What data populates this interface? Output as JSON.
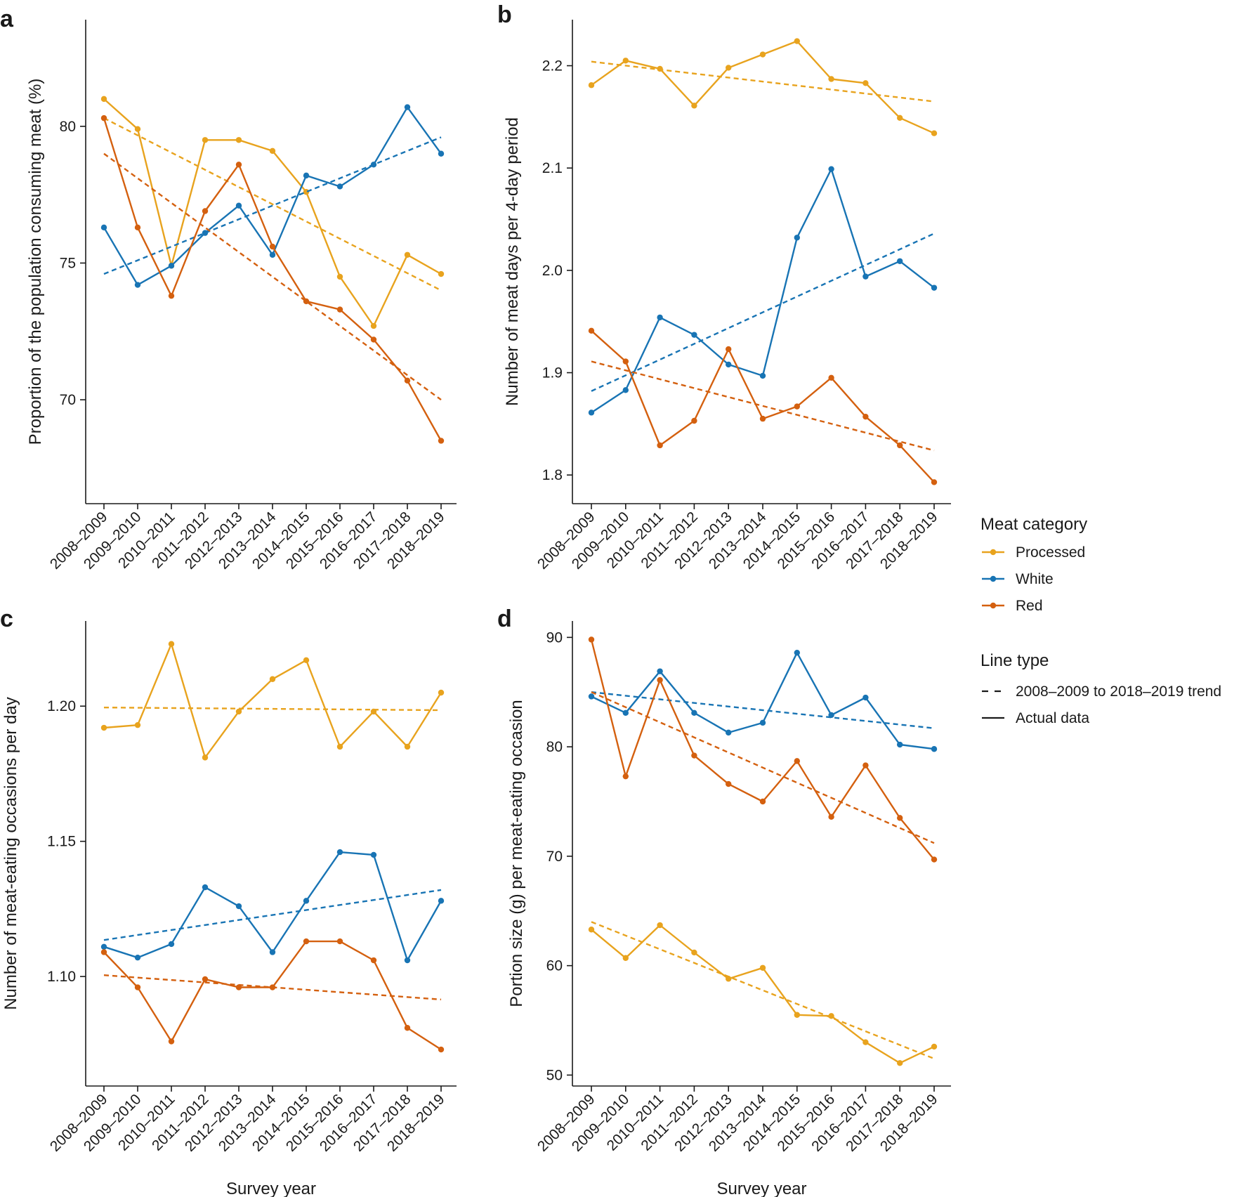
{
  "colors": {
    "Processed": "#e8a31e",
    "White": "#1874b4",
    "Red": "#d4600f",
    "axis": "#1a1a1a"
  },
  "chart_data": [
    {
      "type": "line",
      "panel": "a",
      "categories": [
        "2008–2009",
        "2009–2010",
        "2010–2011",
        "2011–2012",
        "2012–2013",
        "2013–2014",
        "2014–2015",
        "2015–2016",
        "2016–2017",
        "2017–2018",
        "2018–2019"
      ],
      "xlabel": "",
      "ylabel": "Proportion of the population consuming meat (%)",
      "ylim": [
        66.2,
        83.9
      ],
      "yticks": [
        70,
        75,
        80
      ],
      "series": [
        {
          "name": "Processed",
          "values": [
            81.0,
            79.9,
            74.9,
            79.5,
            79.5,
            79.1,
            77.6,
            74.5,
            72.7,
            75.3,
            74.6
          ],
          "trend": [
            80.3,
            74.0
          ]
        },
        {
          "name": "White",
          "values": [
            76.3,
            74.2,
            74.9,
            76.1,
            77.1,
            75.3,
            78.2,
            77.8,
            78.6,
            80.7,
            79.0
          ],
          "trend": [
            74.6,
            79.6
          ]
        },
        {
          "name": "Red",
          "values": [
            80.3,
            76.3,
            73.8,
            76.9,
            78.6,
            75.6,
            73.6,
            73.3,
            72.2,
            70.7,
            68.5
          ],
          "trend": [
            79.0,
            70.0
          ]
        }
      ]
    },
    {
      "type": "line",
      "panel": "b",
      "categories": [
        "2008–2009",
        "2009–2010",
        "2010–2011",
        "2011–2012",
        "2012–2013",
        "2013–2014",
        "2014–2015",
        "2015–2016",
        "2016–2017",
        "2017–2018",
        "2018–2019"
      ],
      "xlabel": "",
      "ylabel": "Number of meat days per 4-day period",
      "ylim": [
        1.772,
        2.245
      ],
      "yticks": [
        1.8,
        1.9,
        2.0,
        2.1,
        2.2
      ],
      "series": [
        {
          "name": "Processed",
          "values": [
            2.181,
            2.205,
            2.197,
            2.161,
            2.198,
            2.211,
            2.224,
            2.187,
            2.183,
            2.149,
            2.134
          ],
          "trend": [
            2.204,
            2.165
          ]
        },
        {
          "name": "White",
          "values": [
            1.861,
            1.883,
            1.954,
            1.937,
            1.908,
            1.897,
            2.032,
            2.099,
            1.994,
            2.009,
            1.983
          ],
          "trend": [
            1.882,
            2.036
          ]
        },
        {
          "name": "Red",
          "values": [
            1.941,
            1.911,
            1.829,
            1.853,
            1.923,
            1.855,
            1.867,
            1.895,
            1.857,
            1.829,
            1.793
          ],
          "trend": [
            1.911,
            1.824
          ]
        }
      ]
    },
    {
      "type": "line",
      "panel": "c",
      "categories": [
        "2008–2009",
        "2009–2010",
        "2010–2011",
        "2011–2012",
        "2012–2013",
        "2013–2014",
        "2014–2015",
        "2015–2016",
        "2016–2017",
        "2017–2018",
        "2018–2019"
      ],
      "xlabel": "Survey year",
      "ylabel": "Number of meat-eating occasions per day",
      "ylim": [
        1.0595,
        1.2315
      ],
      "yticks": [
        1.1,
        1.15,
        1.2
      ],
      "series": [
        {
          "name": "Processed",
          "values": [
            1.192,
            1.193,
            1.223,
            1.181,
            1.198,
            1.21,
            1.217,
            1.185,
            1.198,
            1.185,
            1.205
          ],
          "trend": [
            1.1995,
            1.1985
          ]
        },
        {
          "name": "White",
          "values": [
            1.111,
            1.107,
            1.112,
            1.133,
            1.126,
            1.109,
            1.128,
            1.146,
            1.145,
            1.106,
            1.128
          ],
          "trend": [
            1.1135,
            1.132
          ]
        },
        {
          "name": "Red",
          "values": [
            1.109,
            1.096,
            1.076,
            1.099,
            1.096,
            1.096,
            1.113,
            1.113,
            1.106,
            1.081,
            1.073
          ],
          "trend": [
            1.1005,
            1.0915
          ]
        }
      ]
    },
    {
      "type": "line",
      "panel": "d",
      "categories": [
        "2008–2009",
        "2009–2010",
        "2010–2011",
        "2011–2012",
        "2012–2013",
        "2013–2014",
        "2014–2015",
        "2015–2016",
        "2016–2017",
        "2017–2018",
        "2018–2019"
      ],
      "xlabel": "Survey year",
      "ylabel": "Portion size (g) per meat-eating occasion",
      "ylim": [
        49.0,
        91.5
      ],
      "yticks": [
        50,
        60,
        70,
        80,
        90
      ],
      "series": [
        {
          "name": "Processed",
          "values": [
            63.3,
            60.7,
            63.7,
            61.2,
            58.8,
            59.8,
            55.5,
            55.4,
            53.0,
            51.1,
            52.6
          ],
          "trend": [
            64.0,
            51.5
          ]
        },
        {
          "name": "White",
          "values": [
            84.6,
            83.1,
            86.9,
            83.1,
            81.3,
            82.2,
            88.6,
            82.9,
            84.5,
            80.2,
            79.8
          ],
          "trend": [
            85.0,
            81.7
          ]
        },
        {
          "name": "Red",
          "values": [
            89.8,
            77.3,
            86.1,
            79.2,
            76.6,
            75.0,
            78.7,
            73.6,
            78.3,
            73.5,
            69.7
          ],
          "trend": [
            85.0,
            71.2
          ]
        }
      ]
    }
  ],
  "legend": {
    "category_title": "Meat category",
    "category_items": [
      "Processed",
      "White",
      "Red"
    ],
    "linetype_title": "Line type",
    "linetype_items": [
      {
        "label": "2008–2009 to 2018–2019 trend",
        "style": "dashed"
      },
      {
        "label": "Actual data",
        "style": "solid"
      }
    ]
  }
}
